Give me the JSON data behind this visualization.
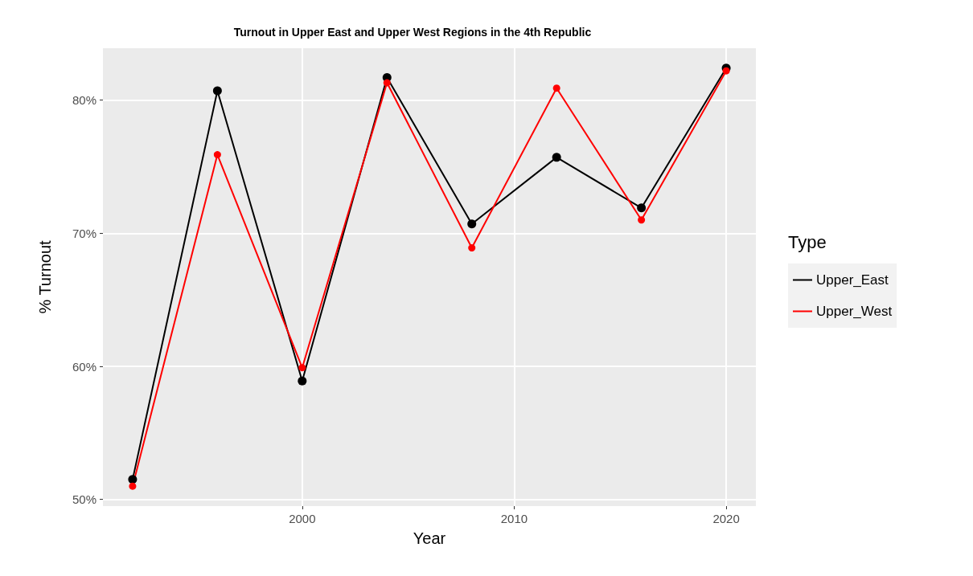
{
  "chart_data": {
    "type": "line",
    "title": "Turnout in Upper East and Upper West Regions in the 4th Republic",
    "xlabel": "Year",
    "ylabel": "% Turnout",
    "legend_title": "Type",
    "x": [
      1992,
      1996,
      2000,
      2004,
      2008,
      2012,
      2016,
      2020
    ],
    "series": [
      {
        "name": "Upper_East",
        "color": "#000000",
        "values": [
          51.5,
          80.7,
          58.9,
          81.7,
          70.7,
          75.7,
          71.9,
          82.4
        ]
      },
      {
        "name": "Upper_West",
        "color": "#ff0000",
        "values": [
          51.0,
          75.9,
          59.9,
          81.3,
          68.9,
          80.9,
          71.0,
          82.2
        ]
      }
    ],
    "xlim": [
      1990.6,
      2021.4
    ],
    "xticks": [
      2000,
      2010,
      2020
    ],
    "ylim": [
      49.5,
      83.9
    ],
    "yticks": [
      {
        "value": 50,
        "label": "50%"
      },
      {
        "value": 60,
        "label": "60%"
      },
      {
        "value": 70,
        "label": "70%"
      },
      {
        "value": 80,
        "label": "80%"
      }
    ],
    "grid": true,
    "legend": "right",
    "marker": "circle",
    "line_style": "solid"
  }
}
